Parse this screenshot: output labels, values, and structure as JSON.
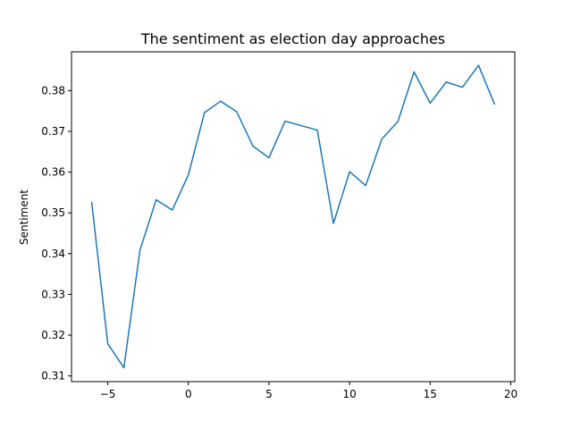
{
  "chart_data": {
    "type": "line",
    "title": "The sentiment as election day approaches",
    "xlabel": "",
    "ylabel": "Sentiment",
    "xlim": [
      -7.25,
      20.25
    ],
    "ylim": [
      0.3086,
      0.3895
    ],
    "xticks": [
      -5,
      0,
      5,
      10,
      15,
      20
    ],
    "xtick_labels": [
      "−5",
      "0",
      "5",
      "10",
      "15",
      "20"
    ],
    "yticks": [
      0.31,
      0.32,
      0.33,
      0.34,
      0.35,
      0.36,
      0.37,
      0.38
    ],
    "ytick_labels": [
      "0.31",
      "0.32",
      "0.33",
      "0.34",
      "0.35",
      "0.36",
      "0.37",
      "0.38"
    ],
    "grid": false,
    "line_color": "#1f77b4",
    "series": [
      {
        "x": [
          -6,
          -5,
          -4,
          -3,
          -2,
          -1,
          0,
          1,
          2,
          3,
          4,
          5,
          6,
          7,
          8,
          9,
          10,
          11,
          12,
          13,
          14,
          15,
          16,
          17,
          18,
          19
        ],
        "values": [
          0.3527,
          0.3179,
          0.312,
          0.3409,
          0.3532,
          0.3507,
          0.3593,
          0.3746,
          0.3774,
          0.3748,
          0.3664,
          0.3635,
          0.3725,
          0.3714,
          0.3703,
          0.3474,
          0.3601,
          0.3567,
          0.3681,
          0.3724,
          0.3846,
          0.3769,
          0.3821,
          0.3808,
          0.3862,
          0.3766
        ]
      }
    ]
  }
}
